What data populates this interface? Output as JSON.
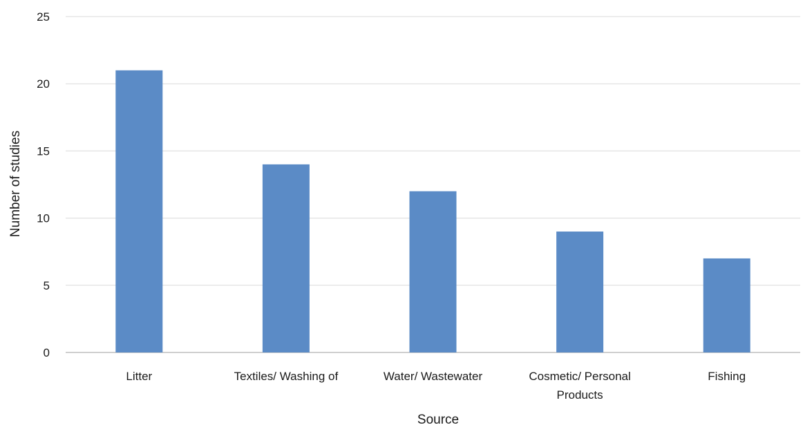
{
  "chart_data": {
    "type": "bar",
    "categories": [
      [
        "Litter"
      ],
      [
        "Textiles/ Washing of"
      ],
      [
        "Water/ Wastewater"
      ],
      [
        "Cosmetic/ Personal",
        "Products"
      ],
      [
        "Fishing"
      ]
    ],
    "values": [
      21,
      14,
      12,
      9,
      7
    ],
    "xlabel": "Source",
    "ylabel": "Number of studies",
    "ylim": [
      0,
      25
    ],
    "yticks": [
      "0",
      "5",
      "10",
      "15",
      "20",
      "25"
    ],
    "grid": true,
    "legend": "none",
    "bar_color": "#5b8bc6",
    "grid_color": "#d9d9d9",
    "axis_color": "#bfbfbf"
  }
}
